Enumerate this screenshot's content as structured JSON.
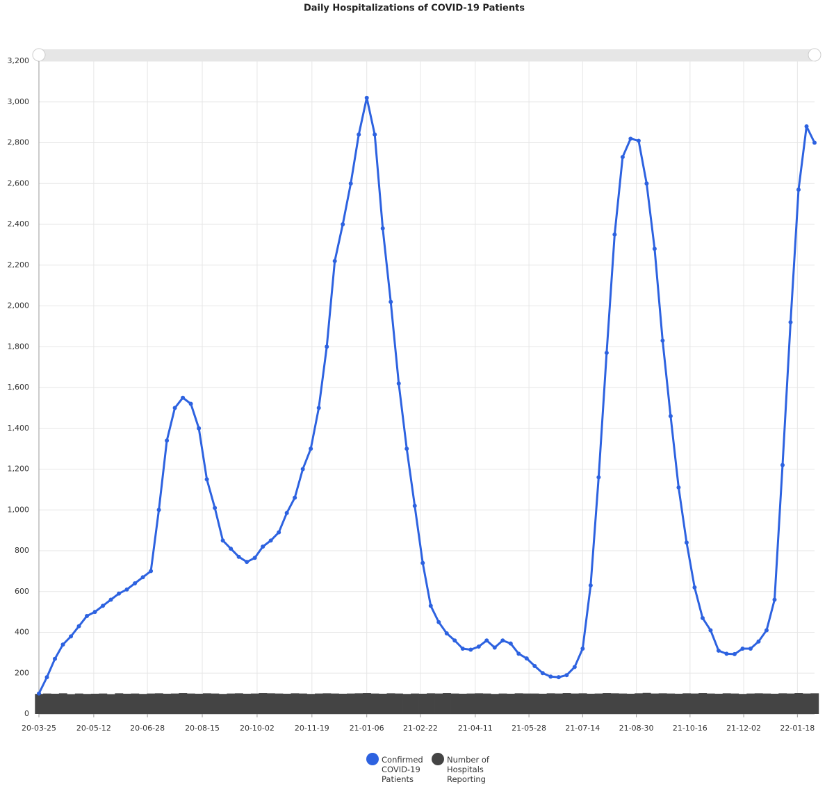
{
  "chart_data": {
    "type": "line",
    "title": "Daily Hospitalizations of COVID-19 Patients",
    "x": [
      "20-03-25",
      "20-04-01",
      "20-04-08",
      "20-04-15",
      "20-04-22",
      "20-04-29",
      "20-05-06",
      "20-05-13",
      "20-05-20",
      "20-05-27",
      "20-06-03",
      "20-06-10",
      "20-06-17",
      "20-06-24",
      "20-07-01",
      "20-07-08",
      "20-07-15",
      "20-07-22",
      "20-07-29",
      "20-08-05",
      "20-08-12",
      "20-08-19",
      "20-08-26",
      "20-09-02",
      "20-09-09",
      "20-09-16",
      "20-09-23",
      "20-09-30",
      "20-10-07",
      "20-10-14",
      "20-10-21",
      "20-10-28",
      "20-11-04",
      "20-11-11",
      "20-11-18",
      "20-11-25",
      "20-12-02",
      "20-12-09",
      "20-12-16",
      "20-12-23",
      "20-12-30",
      "21-01-06",
      "21-01-13",
      "21-01-20",
      "21-01-27",
      "21-02-03",
      "21-02-10",
      "21-02-17",
      "21-02-24",
      "21-03-03",
      "21-03-10",
      "21-03-17",
      "21-03-24",
      "21-03-31",
      "21-04-07",
      "21-04-14",
      "21-04-21",
      "21-04-28",
      "21-05-05",
      "21-05-12",
      "21-05-19",
      "21-05-26",
      "21-06-02",
      "21-06-09",
      "21-06-16",
      "21-06-23",
      "21-06-30",
      "21-07-07",
      "21-07-14",
      "21-07-21",
      "21-07-28",
      "21-08-04",
      "21-08-11",
      "21-08-18",
      "21-08-25",
      "21-09-01",
      "21-09-08",
      "21-09-15",
      "21-09-22",
      "21-09-29",
      "21-10-06",
      "21-10-13",
      "21-10-20",
      "21-10-27",
      "21-11-03",
      "21-11-10",
      "21-11-17",
      "21-11-24",
      "21-12-01",
      "21-12-08",
      "21-12-15",
      "21-12-22",
      "21-12-29",
      "22-01-05",
      "22-01-12",
      "22-01-19",
      "22-01-26",
      "22-02-02"
    ],
    "series": [
      {
        "name": "Confirmed COVID-19 Patients",
        "color": "#2d62e0",
        "values": [
          100,
          180,
          270,
          340,
          380,
          430,
          480,
          500,
          530,
          560,
          590,
          610,
          640,
          670,
          700,
          1000,
          1340,
          1500,
          1550,
          1520,
          1400,
          1150,
          1010,
          850,
          810,
          770,
          745,
          765,
          820,
          850,
          890,
          985,
          1060,
          1200,
          1300,
          1500,
          1800,
          2220,
          2400,
          2600,
          2840,
          3020,
          2840,
          2380,
          2020,
          1620,
          1300,
          1020,
          740,
          530,
          450,
          395,
          360,
          320,
          315,
          330,
          360,
          325,
          360,
          345,
          295,
          272,
          235,
          200,
          183,
          180,
          190,
          230,
          320,
          630,
          1160,
          1770,
          2350,
          2730,
          2820,
          2810,
          2600,
          2280,
          1830,
          1460,
          1110,
          840,
          620,
          470,
          410,
          310,
          295,
          293,
          320,
          320,
          355,
          410,
          560,
          1220,
          1920,
          2570,
          2880,
          2800
        ]
      },
      {
        "name": "Number of Hospitals Reporting",
        "color": "#444444",
        "values": [
          98,
          100,
          99,
          101,
          97,
          100,
          98,
          99,
          100,
          97,
          101,
          99,
          100,
          98,
          100,
          101,
          99,
          100,
          102,
          100,
          99,
          101,
          100,
          98,
          100,
          101,
          99,
          100,
          102,
          101,
          100,
          99,
          101,
          100,
          98,
          100,
          101,
          100,
          99,
          100,
          101,
          102,
          100,
          99,
          101,
          100,
          98,
          100,
          99,
          101,
          100,
          102,
          100,
          99,
          100,
          101,
          100,
          98,
          100,
          99,
          101,
          100,
          100,
          99,
          101,
          100,
          102,
          100,
          101,
          99,
          100,
          102,
          101,
          100,
          99,
          101,
          103,
          100,
          101,
          100,
          99,
          101,
          100,
          102,
          100,
          99,
          101,
          100,
          98,
          100,
          101,
          100,
          99,
          101,
          100,
          102,
          100,
          101
        ]
      }
    ],
    "xlim": [
      "20-03-25",
      "22-02-02"
    ],
    "xticks": [
      "20-03-25",
      "20-05-12",
      "20-06-28",
      "20-08-15",
      "20-10-02",
      "20-11-19",
      "21-01-06",
      "21-02-22",
      "21-04-11",
      "21-05-28",
      "21-07-14",
      "21-08-30",
      "21-10-16",
      "21-12-02",
      "22-01-18"
    ],
    "ylim": [
      0,
      3200
    ],
    "yticks": [
      0,
      200,
      400,
      600,
      800,
      {
        "value": 1000,
        "label": "1,000"
      },
      {
        "value": 1200,
        "label": "1,200"
      },
      {
        "value": 1400,
        "label": "1,400"
      },
      {
        "value": 1600,
        "label": "1,600"
      },
      {
        "value": 1800,
        "label": "1,800"
      },
      {
        "value": 2000,
        "label": "2,000"
      },
      {
        "value": 2200,
        "label": "2,200"
      },
      {
        "value": 2400,
        "label": "2,400"
      },
      {
        "value": 2600,
        "label": "2,600"
      },
      {
        "value": 2800,
        "label": "2,800"
      },
      {
        "value": 3000,
        "label": "3,000"
      },
      {
        "value": 3200,
        "label": "3,200"
      }
    ],
    "grid": true
  }
}
